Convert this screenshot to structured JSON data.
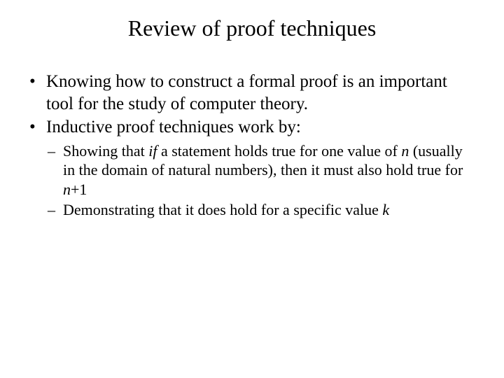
{
  "slide": {
    "title": "Review of proof techniques",
    "background_color": "#ffffff",
    "text_color": "#000000",
    "font_family": "Times New Roman",
    "title_fontsize": 32,
    "bullet1_fontsize": 25,
    "bullet2_fontsize": 22,
    "bullets": [
      {
        "text_before": "Knowing how to construct a formal proof is an important tool for the study of computer theory."
      },
      {
        "text_before": "Inductive proof techniques work by:",
        "sub": [
          {
            "pre": "Showing that ",
            "it1": "if",
            "mid1": " a statement holds true for one value of ",
            "it2": "n",
            "mid2": " (usually in the domain of natural numbers), then it must also hold true for ",
            "it3": "n",
            "post": "+1"
          },
          {
            "pre": "Demonstrating that it does hold for a specific value ",
            "it1": "k"
          }
        ]
      }
    ]
  }
}
